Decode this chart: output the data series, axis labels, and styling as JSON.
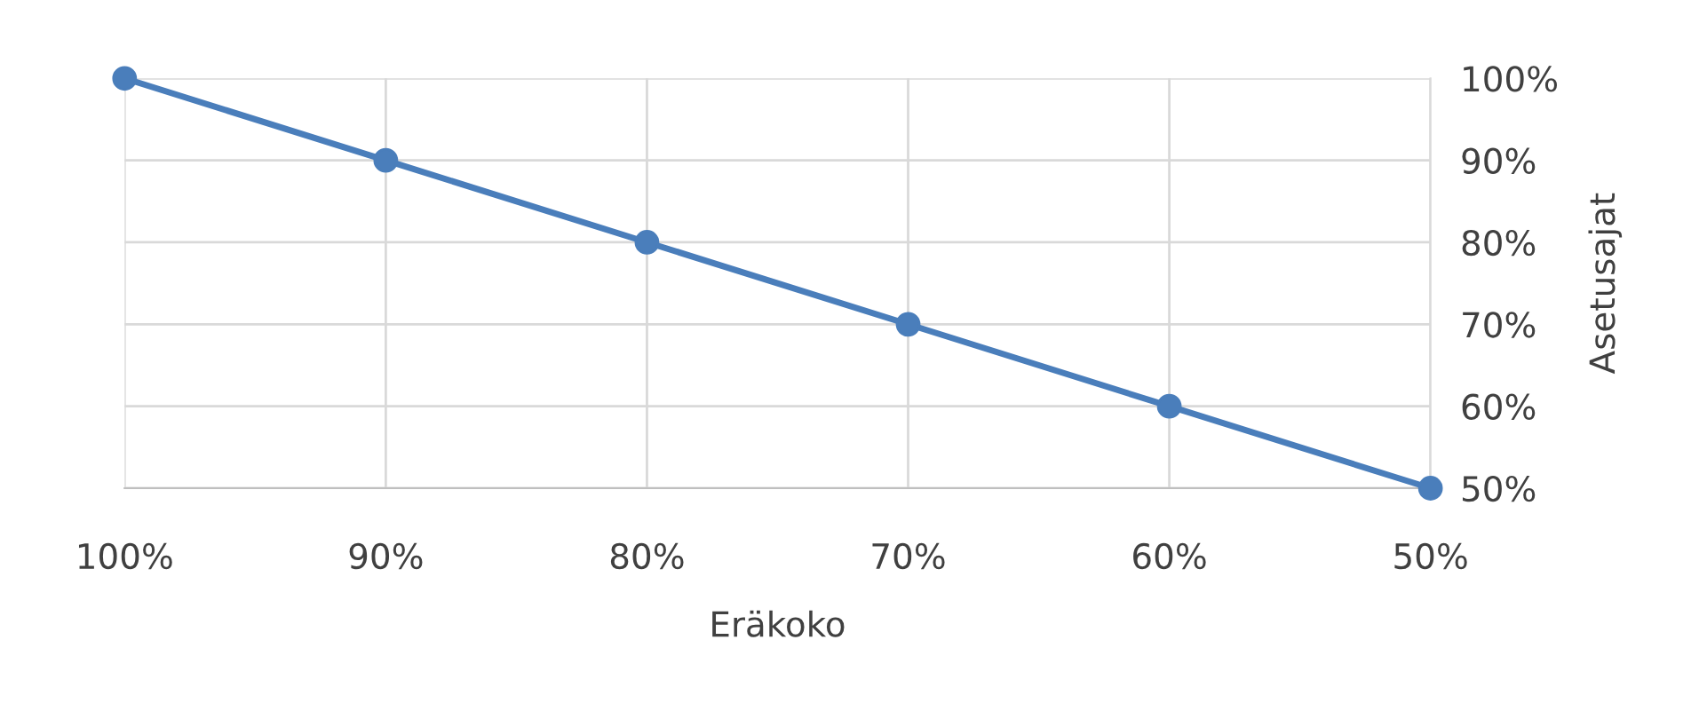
{
  "chart_data": {
    "type": "line",
    "xlabel": "Eräkoko",
    "ylabel": "Asetusajat",
    "x": [
      100,
      90,
      80,
      70,
      60,
      50
    ],
    "series": [
      {
        "color": "#4a7ebb",
        "values": [
          100,
          90,
          80,
          70,
          60,
          50
        ]
      }
    ],
    "xlim": [
      100,
      50
    ],
    "ylim": [
      50,
      100
    ],
    "xticks": [
      {
        "value": 100,
        "label": "100%"
      },
      {
        "value": 90,
        "label": "90%"
      },
      {
        "value": 80,
        "label": "80%"
      },
      {
        "value": 70,
        "label": "70%"
      },
      {
        "value": 60,
        "label": "60%"
      },
      {
        "value": 50,
        "label": "50%"
      }
    ],
    "yticks": [
      {
        "value": 50,
        "label": "50%"
      },
      {
        "value": 60,
        "label": "60%"
      },
      {
        "value": 70,
        "label": "70%"
      },
      {
        "value": 80,
        "label": "80%"
      },
      {
        "value": 90,
        "label": "90%"
      },
      {
        "value": 100,
        "label": "100%"
      }
    ],
    "grid": true,
    "legend": false,
    "marker": "circle",
    "line_style": "solid"
  }
}
